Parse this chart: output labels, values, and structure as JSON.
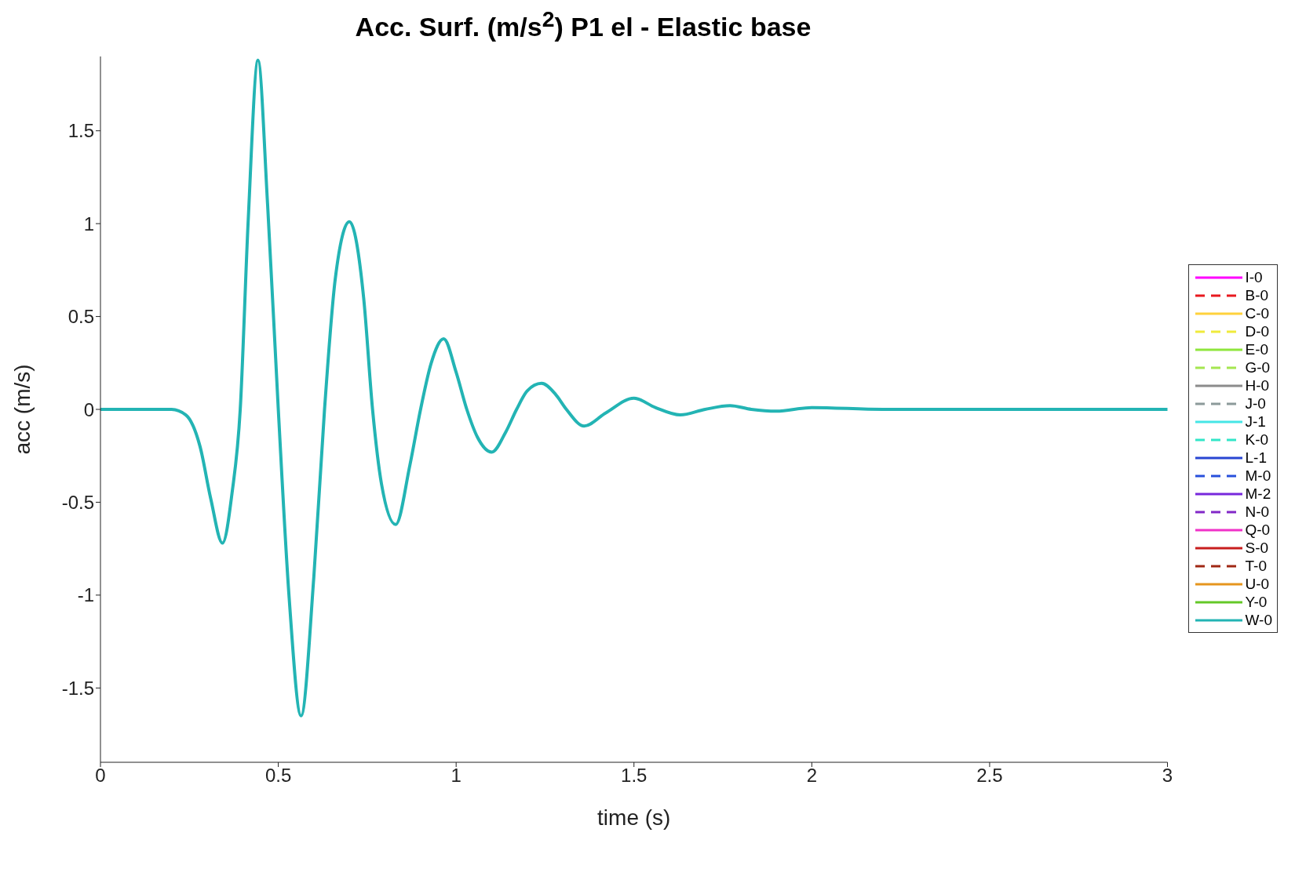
{
  "chart_data": {
    "type": "line",
    "title": "Acc. Surf. (m/s$^{2}$) P1 el - Elastic base",
    "xlabel": "time (s)",
    "ylabel": "acc (m/s)",
    "x": [
      0,
      0.2,
      0.24,
      0.28,
      0.31,
      0.343,
      0.37,
      0.393,
      0.415,
      0.443,
      0.47,
      0.5,
      0.53,
      0.564,
      0.6,
      0.63,
      0.66,
      0.7,
      0.74,
      0.765,
      0.79,
      0.83,
      0.87,
      0.9,
      0.93,
      0.965,
      1.0,
      1.03,
      1.06,
      1.1,
      1.14,
      1.17,
      1.2,
      1.24,
      1.28,
      1.31,
      1.36,
      1.42,
      1.5,
      1.56,
      1.63,
      1.7,
      1.77,
      1.83,
      1.9,
      2.0,
      2.2,
      2.5,
      3
    ],
    "xlim": [
      0,
      3
    ],
    "xticks": [
      0,
      0.5,
      1,
      1.5,
      2,
      2.5,
      3
    ],
    "ylim": [
      -1.9,
      1.9
    ],
    "yticks": [
      -1.5,
      -1,
      -0.5,
      0,
      0.5,
      1,
      1.5
    ],
    "grid": false,
    "legend": "right",
    "series": [
      {
        "name": "I-0",
        "color": "#ff00ff",
        "line_style": "solid",
        "values": [
          null,
          null,
          null,
          null,
          null,
          null,
          null,
          null,
          null,
          null,
          null,
          null,
          null,
          null,
          null,
          null,
          null,
          null,
          null,
          null,
          null,
          null,
          null,
          null,
          null,
          null,
          null,
          null,
          null,
          null,
          null,
          null,
          null,
          null,
          null,
          null,
          null,
          null,
          null,
          null,
          null,
          null,
          null,
          null,
          null,
          null,
          null,
          null,
          null
        ]
      },
      {
        "name": "B-0",
        "color": "#e8191f",
        "line_style": "dashed",
        "values": [
          null,
          null,
          null,
          null,
          null,
          null,
          null,
          null,
          null,
          null,
          null,
          null,
          null,
          null,
          null,
          null,
          null,
          null,
          null,
          null,
          null,
          null,
          null,
          null,
          null,
          null,
          null,
          null,
          null,
          null,
          null,
          null,
          null,
          null,
          null,
          null,
          null,
          null,
          null,
          null,
          null,
          null,
          null,
          null,
          null,
          null,
          null,
          null,
          null
        ]
      },
      {
        "name": "C-0",
        "color": "#ffd23c",
        "line_style": "solid",
        "values": [
          null,
          null,
          null,
          null,
          null,
          null,
          null,
          null,
          null,
          null,
          null,
          null,
          null,
          null,
          null,
          null,
          null,
          null,
          null,
          null,
          null,
          null,
          null,
          null,
          null,
          null,
          null,
          null,
          null,
          null,
          null,
          null,
          null,
          null,
          null,
          null,
          null,
          null,
          null,
          null,
          null,
          null,
          null,
          null,
          null,
          null,
          null,
          null,
          null
        ]
      },
      {
        "name": "D-0",
        "color": "#f0eb3c",
        "line_style": "dashed",
        "values": [
          null,
          null,
          null,
          null,
          null,
          null,
          null,
          null,
          null,
          null,
          null,
          null,
          null,
          null,
          null,
          null,
          null,
          null,
          null,
          null,
          null,
          null,
          null,
          null,
          null,
          null,
          null,
          null,
          null,
          null,
          null,
          null,
          null,
          null,
          null,
          null,
          null,
          null,
          null,
          null,
          null,
          null,
          null,
          null,
          null,
          null,
          null,
          null,
          null
        ]
      },
      {
        "name": "E-0",
        "color": "#8fe63c",
        "line_style": "solid",
        "values": [
          null,
          null,
          null,
          null,
          null,
          null,
          null,
          null,
          null,
          null,
          null,
          null,
          null,
          null,
          null,
          null,
          null,
          null,
          null,
          null,
          null,
          null,
          null,
          null,
          null,
          null,
          null,
          null,
          null,
          null,
          null,
          null,
          null,
          null,
          null,
          null,
          null,
          null,
          null,
          null,
          null,
          null,
          null,
          null,
          null,
          null,
          null,
          null,
          null
        ]
      },
      {
        "name": "G-0",
        "color": "#a5e650",
        "line_style": "dashed",
        "values": [
          null,
          null,
          null,
          null,
          null,
          null,
          null,
          null,
          null,
          null,
          null,
          null,
          null,
          null,
          null,
          null,
          null,
          null,
          null,
          null,
          null,
          null,
          null,
          null,
          null,
          null,
          null,
          null,
          null,
          null,
          null,
          null,
          null,
          null,
          null,
          null,
          null,
          null,
          null,
          null,
          null,
          null,
          null,
          null,
          null,
          null,
          null,
          null,
          null
        ]
      },
      {
        "name": "H-0",
        "color": "#8c8c8c",
        "line_style": "solid",
        "values": [
          null,
          null,
          null,
          null,
          null,
          null,
          null,
          null,
          null,
          null,
          null,
          null,
          null,
          null,
          null,
          null,
          null,
          null,
          null,
          null,
          null,
          null,
          null,
          null,
          null,
          null,
          null,
          null,
          null,
          null,
          null,
          null,
          null,
          null,
          null,
          null,
          null,
          null,
          null,
          null,
          null,
          null,
          null,
          null,
          null,
          null,
          null,
          null,
          null
        ]
      },
      {
        "name": "J-0",
        "color": "#8c9a9a",
        "line_style": "dashed",
        "values": [
          null,
          null,
          null,
          null,
          null,
          null,
          null,
          null,
          null,
          null,
          null,
          null,
          null,
          null,
          null,
          null,
          null,
          null,
          null,
          null,
          null,
          null,
          null,
          null,
          null,
          null,
          null,
          null,
          null,
          null,
          null,
          null,
          null,
          null,
          null,
          null,
          null,
          null,
          null,
          null,
          null,
          null,
          null,
          null,
          null,
          null,
          null,
          null,
          null
        ]
      },
      {
        "name": "J-1",
        "color": "#46e6e6",
        "line_style": "solid",
        "values": [
          null,
          null,
          null,
          null,
          null,
          null,
          null,
          null,
          null,
          null,
          null,
          null,
          null,
          null,
          null,
          null,
          null,
          null,
          null,
          null,
          null,
          null,
          null,
          null,
          null,
          null,
          null,
          null,
          null,
          null,
          null,
          null,
          null,
          null,
          null,
          null,
          null,
          null,
          null,
          null,
          null,
          null,
          null,
          null,
          null,
          null,
          null,
          null,
          null
        ]
      },
      {
        "name": "K-0",
        "color": "#32e6c8",
        "line_style": "dashed",
        "values": [
          null,
          null,
          null,
          null,
          null,
          null,
          null,
          null,
          null,
          null,
          null,
          null,
          null,
          null,
          null,
          null,
          null,
          null,
          null,
          null,
          null,
          null,
          null,
          null,
          null,
          null,
          null,
          null,
          null,
          null,
          null,
          null,
          null,
          null,
          null,
          null,
          null,
          null,
          null,
          null,
          null,
          null,
          null,
          null,
          null,
          null,
          null,
          null,
          null
        ]
      },
      {
        "name": "L-1",
        "color": "#2846d2",
        "line_style": "solid",
        "values": [
          null,
          null,
          null,
          null,
          null,
          null,
          null,
          null,
          null,
          null,
          null,
          null,
          null,
          null,
          null,
          null,
          null,
          null,
          null,
          null,
          null,
          null,
          null,
          null,
          null,
          null,
          null,
          null,
          null,
          null,
          null,
          null,
          null,
          null,
          null,
          null,
          null,
          null,
          null,
          null,
          null,
          null,
          null,
          null,
          null,
          null,
          null,
          null,
          null
        ]
      },
      {
        "name": "M-0",
        "color": "#2850dc",
        "line_style": "dashed",
        "values": [
          null,
          null,
          null,
          null,
          null,
          null,
          null,
          null,
          null,
          null,
          null,
          null,
          null,
          null,
          null,
          null,
          null,
          null,
          null,
          null,
          null,
          null,
          null,
          null,
          null,
          null,
          null,
          null,
          null,
          null,
          null,
          null,
          null,
          null,
          null,
          null,
          null,
          null,
          null,
          null,
          null,
          null,
          null,
          null,
          null,
          null,
          null,
          null,
          null
        ]
      },
      {
        "name": "M-2",
        "color": "#7828dc",
        "line_style": "solid",
        "values": [
          null,
          null,
          null,
          null,
          null,
          null,
          null,
          null,
          null,
          null,
          null,
          null,
          null,
          null,
          null,
          null,
          null,
          null,
          null,
          null,
          null,
          null,
          null,
          null,
          null,
          null,
          null,
          null,
          null,
          null,
          null,
          null,
          null,
          null,
          null,
          null,
          null,
          null,
          null,
          null,
          null,
          null,
          null,
          null,
          null,
          null,
          null,
          null,
          null
        ]
      },
      {
        "name": "N-0",
        "color": "#8228c8",
        "line_style": "dashed",
        "values": [
          null,
          null,
          null,
          null,
          null,
          null,
          null,
          null,
          null,
          null,
          null,
          null,
          null,
          null,
          null,
          null,
          null,
          null,
          null,
          null,
          null,
          null,
          null,
          null,
          null,
          null,
          null,
          null,
          null,
          null,
          null,
          null,
          null,
          null,
          null,
          null,
          null,
          null,
          null,
          null,
          null,
          null,
          null,
          null,
          null,
          null,
          null,
          null,
          null
        ]
      },
      {
        "name": "Q-0",
        "color": "#f032c8",
        "line_style": "solid",
        "values": [
          null,
          null,
          null,
          null,
          null,
          null,
          null,
          null,
          null,
          null,
          null,
          null,
          null,
          null,
          null,
          null,
          null,
          null,
          null,
          null,
          null,
          null,
          null,
          null,
          null,
          null,
          null,
          null,
          null,
          null,
          null,
          null,
          null,
          null,
          null,
          null,
          null,
          null,
          null,
          null,
          null,
          null,
          null,
          null,
          null,
          null,
          null,
          null,
          null
        ]
      },
      {
        "name": "S-0",
        "color": "#c81e1e",
        "line_style": "solid",
        "values": [
          null,
          null,
          null,
          null,
          null,
          null,
          null,
          null,
          null,
          null,
          null,
          null,
          null,
          null,
          null,
          null,
          null,
          null,
          null,
          null,
          null,
          null,
          null,
          null,
          null,
          null,
          null,
          null,
          null,
          null,
          null,
          null,
          null,
          null,
          null,
          null,
          null,
          null,
          null,
          null,
          null,
          null,
          null,
          null,
          null,
          null,
          null,
          null,
          null
        ]
      },
      {
        "name": "T-0",
        "color": "#a02814",
        "line_style": "dashed",
        "values": [
          null,
          null,
          null,
          null,
          null,
          null,
          null,
          null,
          null,
          null,
          null,
          null,
          null,
          null,
          null,
          null,
          null,
          null,
          null,
          null,
          null,
          null,
          null,
          null,
          null,
          null,
          null,
          null,
          null,
          null,
          null,
          null,
          null,
          null,
          null,
          null,
          null,
          null,
          null,
          null,
          null,
          null,
          null,
          null,
          null,
          null,
          null,
          null,
          null
        ]
      },
      {
        "name": "U-0",
        "color": "#e6961e",
        "line_style": "solid",
        "values": [
          null,
          null,
          null,
          null,
          null,
          null,
          null,
          null,
          null,
          null,
          null,
          null,
          null,
          null,
          null,
          null,
          null,
          null,
          null,
          null,
          null,
          null,
          null,
          null,
          null,
          null,
          null,
          null,
          null,
          null,
          null,
          null,
          null,
          null,
          null,
          null,
          null,
          null,
          null,
          null,
          null,
          null,
          null,
          null,
          null,
          null,
          null,
          null,
          null
        ]
      },
      {
        "name": "Y-0",
        "color": "#64c828",
        "line_style": "solid",
        "values": [
          null,
          null,
          null,
          null,
          null,
          null,
          null,
          null,
          null,
          null,
          null,
          null,
          null,
          null,
          null,
          null,
          null,
          null,
          null,
          null,
          null,
          null,
          null,
          null,
          null,
          null,
          null,
          null,
          null,
          null,
          null,
          null,
          null,
          null,
          null,
          null,
          null,
          null,
          null,
          null,
          null,
          null,
          null,
          null,
          null,
          null,
          null,
          null,
          null
        ]
      },
      {
        "name": "W-0",
        "color": "#23b4b4",
        "line_style": "solid",
        "values": [
          0,
          0,
          -0.03,
          -0.2,
          -0.48,
          -0.72,
          -0.45,
          0,
          1.0,
          1.88,
          1.1,
          0,
          -1.0,
          -1.65,
          -0.9,
          0,
          0.7,
          1.01,
          0.6,
          0,
          -0.4,
          -0.62,
          -0.3,
          0,
          0.25,
          0.38,
          0.2,
          0,
          -0.15,
          -0.23,
          -0.12,
          0,
          0.1,
          0.14,
          0.08,
          0,
          -0.09,
          -0.02,
          0.06,
          0.01,
          -0.03,
          0,
          0.02,
          0,
          -0.01,
          0.01,
          0,
          0,
          0
        ]
      }
    ]
  }
}
